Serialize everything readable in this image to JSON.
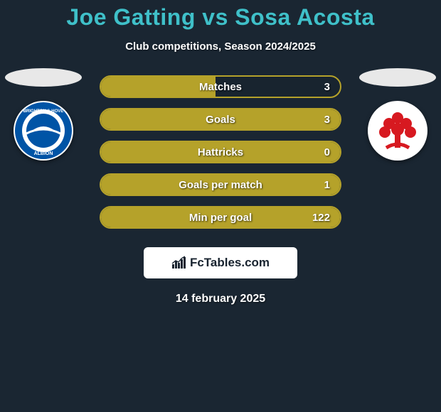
{
  "title": "Joe Gatting vs Sosa Acosta",
  "subtitle": "Club competitions, Season 2024/2025",
  "date": "14 february 2025",
  "site": {
    "label": "FcTables.com"
  },
  "colors": {
    "background": "#1a2632",
    "title": "#3fc0c9",
    "bar_border": "#b5a22a",
    "bar_fill": "#b5a22a",
    "text": "#ffffff"
  },
  "left_club": {
    "name": "Brighton & Hove Albion",
    "badge_bg": "#ffffff",
    "ring": "#0054a6",
    "inner": "#0054a6"
  },
  "right_club": {
    "name": "Nottingham Forest",
    "badge_bg": "#ffffff",
    "tree": "#d71920"
  },
  "stats": [
    {
      "label": "Matches",
      "value": "3",
      "fill_pct": 48
    },
    {
      "label": "Goals",
      "value": "3",
      "fill_pct": 100
    },
    {
      "label": "Hattricks",
      "value": "0",
      "fill_pct": 100
    },
    {
      "label": "Goals per match",
      "value": "1",
      "fill_pct": 100
    },
    {
      "label": "Min per goal",
      "value": "122",
      "fill_pct": 100
    }
  ]
}
